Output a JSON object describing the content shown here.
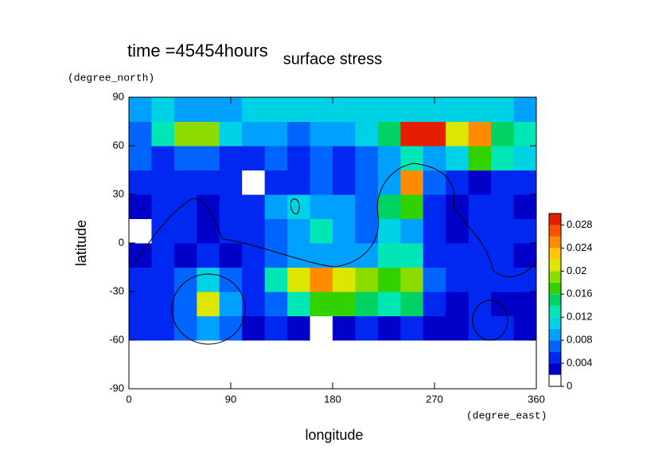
{
  "chart_data": {
    "type": "contour",
    "title": "surface stress",
    "annotation": "time =45454hours",
    "xlabel": "longitude",
    "ylabel": "latitude",
    "xunit": "(degree_east)",
    "yunit": "(degree_north)",
    "xlim": [
      0,
      360
    ],
    "ylim": [
      -90,
      90
    ],
    "xticks": [
      0,
      90,
      180,
      270,
      360
    ],
    "yticks": [
      -90,
      -60,
      -30,
      0,
      30,
      60,
      90
    ],
    "x": [
      10,
      30,
      50,
      70,
      90,
      110,
      130,
      150,
      170,
      190,
      210,
      230,
      250,
      270,
      290,
      310,
      330,
      350
    ],
    "y": [
      -82.5,
      -67.5,
      -52.5,
      -37.5,
      -22.5,
      -7.5,
      7.5,
      22.5,
      37.5,
      52.5,
      67.5,
      82.5
    ],
    "z": [
      [
        0,
        0,
        0,
        0,
        0,
        0,
        0,
        0,
        0,
        0,
        0,
        0,
        0,
        0,
        0,
        0,
        0,
        0
      ],
      [
        0,
        0,
        0,
        0,
        0,
        0,
        0,
        0,
        0,
        0,
        0,
        0,
        0,
        0,
        0,
        0,
        0,
        0
      ],
      [
        0.004,
        0.004,
        0.006,
        0.008,
        0.006,
        0.003,
        0.004,
        0.003,
        0.001,
        0.003,
        0.004,
        0.002,
        0.004,
        0.003,
        0.002,
        0.004,
        0.004,
        0.002
      ],
      [
        0.004,
        0.004,
        0.007,
        0.02,
        0.008,
        0.004,
        0.006,
        0.012,
        0.016,
        0.016,
        0.014,
        0.012,
        0.014,
        0.005,
        0.002,
        0.004,
        0.003,
        0.003
      ],
      [
        0.004,
        0.005,
        0.006,
        0.01,
        0.006,
        0.004,
        0.012,
        0.02,
        0.024,
        0.02,
        0.018,
        0.016,
        0.018,
        0.006,
        0.004,
        0.004,
        0.005,
        0.004
      ],
      [
        0.002,
        0.004,
        0.003,
        0.004,
        0.003,
        0.004,
        0.006,
        0.008,
        0.009,
        0.008,
        0.008,
        0.012,
        0.012,
        0.004,
        0.004,
        0.004,
        0.004,
        0.003
      ],
      [
        0.001,
        0.004,
        0.004,
        0.002,
        0.005,
        0.004,
        0.006,
        0.008,
        0.012,
        0.008,
        0.006,
        0.01,
        0.008,
        0.004,
        0.003,
        0.004,
        0.004,
        0.004
      ],
      [
        0.002,
        0.005,
        0.004,
        0.002,
        0.005,
        0.005,
        0.008,
        0.01,
        0.008,
        0.008,
        0.006,
        0.014,
        0.016,
        0.004,
        0.002,
        0.004,
        0.004,
        0.003
      ],
      [
        0.004,
        0.004,
        0.005,
        0.004,
        0.004,
        0.001,
        0.004,
        0.004,
        0.006,
        0.004,
        0.006,
        0.008,
        0.024,
        0.006,
        0.004,
        0.002,
        0.004,
        0.004
      ],
      [
        0.006,
        0.005,
        0.006,
        0.006,
        0.005,
        0.004,
        0.006,
        0.004,
        0.006,
        0.005,
        0.006,
        0.008,
        0.012,
        0.008,
        0.01,
        0.016,
        0.012,
        0.01
      ],
      [
        0.006,
        0.012,
        0.018,
        0.018,
        0.01,
        0.008,
        0.008,
        0.006,
        0.008,
        0.008,
        0.01,
        0.014,
        0.03,
        0.03,
        0.02,
        0.024,
        0.014,
        0.012
      ],
      [
        0.008,
        0.01,
        0.008,
        0.008,
        0.008,
        0.01,
        0.01,
        0.01,
        0.01,
        0.01,
        0.01,
        0.01,
        0.01,
        0.01,
        0.01,
        0.01,
        0.01,
        0.008
      ]
    ],
    "levels": [
      0,
      0.002,
      0.004,
      0.006,
      0.008,
      0.01,
      0.012,
      0.014,
      0.016,
      0.018,
      0.02,
      0.022,
      0.024,
      0.026,
      0.028,
      0.03
    ],
    "colors": [
      "#ffffff",
      "#0000c8",
      "#0028f0",
      "#0064ff",
      "#00a0ff",
      "#00d2e6",
      "#00e6b4",
      "#00d264",
      "#32d200",
      "#8cdc00",
      "#dce600",
      "#ffc800",
      "#ff8c00",
      "#ff5000",
      "#e61e00"
    ],
    "cbticks": [
      0,
      0.004,
      0.008,
      0.012,
      0.016,
      0.02,
      0.024,
      0.028
    ]
  }
}
